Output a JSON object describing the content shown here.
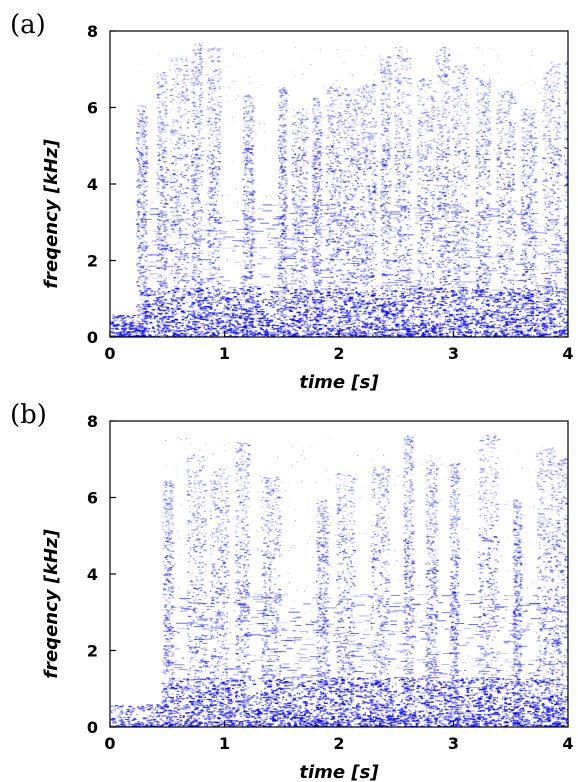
{
  "chart_data": [
    {
      "type": "heatmap",
      "panel_label": "(a)",
      "xlabel": "time [s]",
      "ylabel": "freqency [kHz]",
      "xlim": [
        0,
        4
      ],
      "ylim": [
        0,
        8
      ],
      "x_ticks": [
        "0",
        "1",
        "2",
        "3",
        "4"
      ],
      "y_ticks": [
        "0",
        "2",
        "4",
        "6",
        "8"
      ],
      "color": "#0000ff",
      "speech_onset_s": 0.25,
      "burst_centers_s": [
        0.27,
        0.45,
        0.6,
        0.75,
        0.9,
        1.2,
        1.5,
        1.65,
        1.8,
        1.95,
        2.1,
        2.25,
        2.4,
        2.55,
        2.75,
        2.9,
        3.05,
        3.25,
        3.45,
        3.65,
        3.85,
        4.0
      ]
    },
    {
      "type": "heatmap",
      "panel_label": "(b)",
      "xlabel": "time [s]",
      "ylabel": "freqency [kHz]",
      "xlim": [
        0,
        4
      ],
      "ylim": [
        0,
        8
      ],
      "x_ticks": [
        "0",
        "1",
        "2",
        "3",
        "4"
      ],
      "y_ticks": [
        "0",
        "2",
        "4",
        "6",
        "8"
      ],
      "color": "#0000ff",
      "speech_onset_s": 0.45,
      "burst_centers_s": [
        0.5,
        0.75,
        0.95,
        1.15,
        1.4,
        1.85,
        2.05,
        2.35,
        2.6,
        2.8,
        3.0,
        3.3,
        3.55,
        3.8,
        3.95
      ]
    }
  ]
}
